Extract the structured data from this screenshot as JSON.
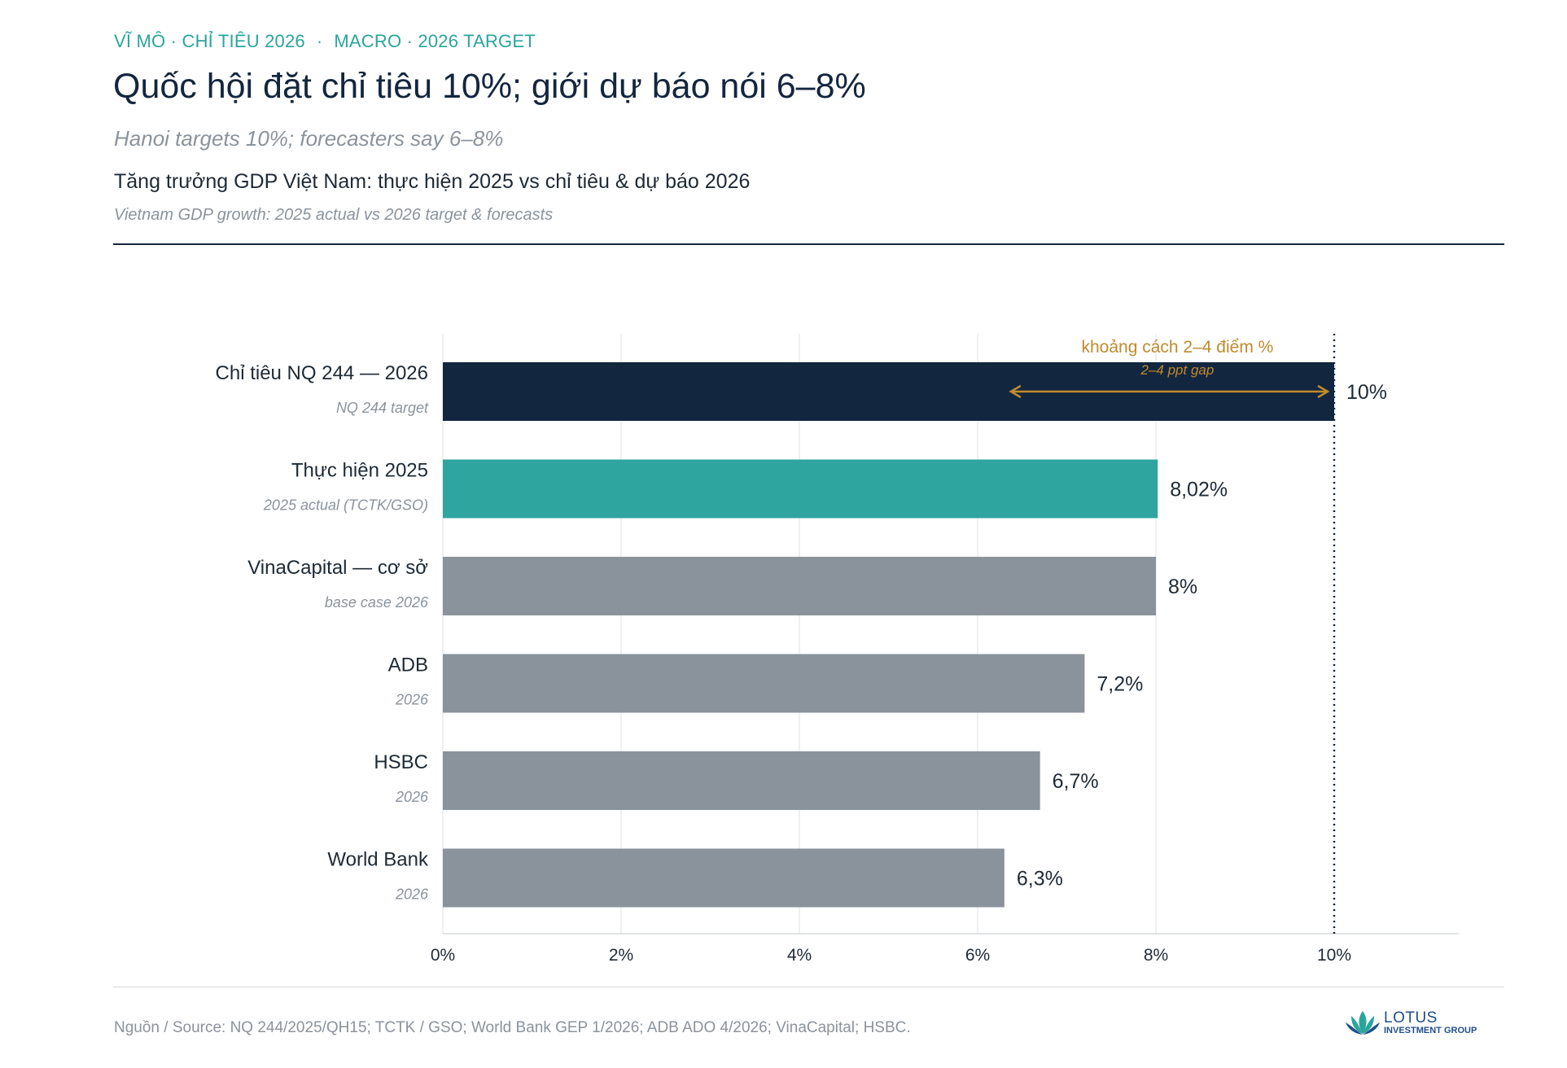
{
  "header": {
    "kicker_vi": "VĨ MÔ · CHỈ TIÊU 2026",
    "kicker_sep": "·",
    "kicker_en": "MACRO · 2026 TARGET",
    "title": "Quốc hội đặt chỉ tiêu 10%; giới dự báo nói 6–8%",
    "subtitle_en": "Hanoi targets 10%; forecasters say 6–8%"
  },
  "chart_data": {
    "type": "bar",
    "orientation": "horizontal",
    "title": "Tăng trưởng GDP Việt Nam: thực hiện 2025 vs chỉ tiêu & dự báo 2026",
    "subtitle": "Vietnam GDP growth: 2025 actual vs 2026 target & forecasts",
    "categories": [
      {
        "label": "Chỉ tiêu NQ 244 — 2026",
        "sublabel": "NQ 244 target",
        "value": 10,
        "value_label": "10%",
        "color": "#13263f"
      },
      {
        "label": "Thực hiện 2025",
        "sublabel": "2025 actual (TCTK/GSO)",
        "value": 8.02,
        "value_label": "8,02%",
        "color": "#2ea59f"
      },
      {
        "label": "VinaCapital — cơ sở",
        "sublabel": "base case 2026",
        "value": 8,
        "value_label": "8%",
        "color": "#8a939c"
      },
      {
        "label": "ADB",
        "sublabel": "2026",
        "value": 7.2,
        "value_label": "7,2%",
        "color": "#8a939c"
      },
      {
        "label": "HSBC",
        "sublabel": "2026",
        "value": 6.7,
        "value_label": "6,7%",
        "color": "#8a939c"
      },
      {
        "label": "World Bank",
        "sublabel": "2026",
        "value": 6.3,
        "value_label": "6,3%",
        "color": "#8a939c"
      }
    ],
    "x_ticks": [
      0,
      2,
      4,
      6,
      8,
      10
    ],
    "x_tick_labels": [
      "0%",
      "2%",
      "4%",
      "6%",
      "8%",
      "10%"
    ],
    "xlim": [
      0,
      11.4
    ],
    "reference_line": {
      "value": 10,
      "style": "dotted",
      "color": "#13263f"
    },
    "annotation": {
      "text_vi": "khoảng cách 2–4 điểm %",
      "text_en": "2–4 ppt gap",
      "from": 6.3,
      "to": 10,
      "color": "#c08a2e"
    },
    "grid": true
  },
  "footer": {
    "source": "Nguồn / Source: NQ 244/2025/QH15; TCTK / GSO; World Bank GEP 1/2026; ADB ADO 4/2026; VinaCapital; HSBC.",
    "logo_word": "LOTUS",
    "logo_sub": "INVESTMENT GROUP",
    "logo_color": "#2aa59d"
  }
}
